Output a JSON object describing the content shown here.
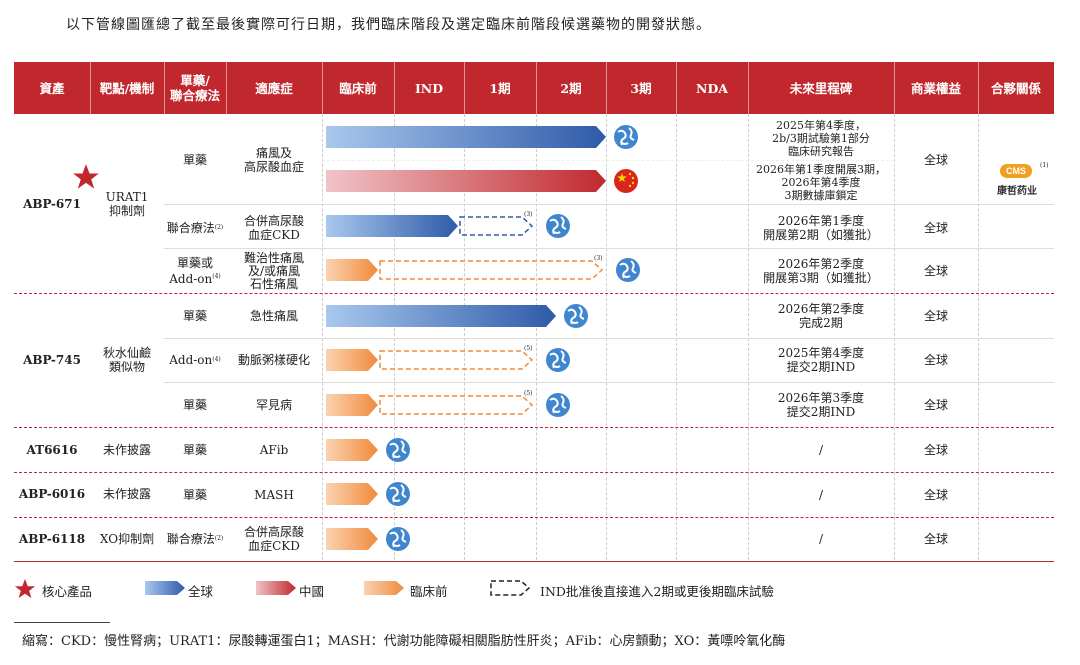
{
  "intro": "以下管線圖匯總了截至最後實際可行日期，我們臨床階段及選定臨床前階段候選藥物的開發狀態。",
  "headers": {
    "asset": "資產",
    "target": "靶點/機制",
    "mode": "單藥/\n聯合療法",
    "indication": "適應症",
    "preclinical": "臨床前",
    "ind": "IND",
    "p1": "1期",
    "p2": "2期",
    "p3": "3期",
    "nda": "NDA",
    "milestone": "未來里程碑",
    "rights": "商業權益",
    "partner": "合夥關係"
  },
  "groups": [
    {
      "asset": "ABP-671",
      "target": "URAT1\n抑制劑",
      "core": true
    },
    {
      "asset": "ABP-745",
      "target": "秋水仙鹼\n類似物"
    },
    {
      "asset": "AT6616",
      "target": "未作披露"
    },
    {
      "asset": "ABP-6016",
      "target": "未作披露"
    },
    {
      "asset": "ABP-6118",
      "target": "XO抑制劑"
    }
  ],
  "rows": [
    {
      "mode": "單藥",
      "indication": "痛風及\n高尿酸血症",
      "milestone": "2025年第4季度，\n2b/3期試驗第1部分\n臨床研究報告",
      "rights": "全球",
      "bar": {
        "stage_end": "3期",
        "region": "全球",
        "type": "solid"
      }
    },
    {
      "mode": "",
      "indication": "",
      "milestone": "2026年第1季度開展3期，\n2026年第4季度\n3期數據庫鎖定",
      "rights": "",
      "bar": {
        "stage_end": "3期",
        "region": "中國",
        "type": "solid"
      }
    },
    {
      "mode": "聯合療法",
      "mode_sup": "(2)",
      "indication": "合併高尿酸\n血症CKD",
      "milestone": "2026年第1季度\n開展第2期（如獲批）",
      "rights": "全球",
      "bar": {
        "stage_end": "IND",
        "region": "全球",
        "type": "solid",
        "dashed_to": "2期",
        "sup": "(3)"
      }
    },
    {
      "mode": "單藥或\nAdd-on",
      "mode_sup": "(4)",
      "indication": "難治性痛風\n及/或痛風\n石性痛風",
      "milestone": "2026年第2季度\n開展第3期（如獲批）",
      "rights": "全球",
      "bar": {
        "stage_end": "臨床前",
        "region": "臨床前",
        "type": "solid",
        "dashed_to": "3期",
        "sup": "(3)"
      }
    },
    {
      "mode": "單藥",
      "indication": "急性痛風",
      "milestone": "2026年第2季度\n完成2期",
      "rights": "全球",
      "bar": {
        "stage_end": "2期",
        "region": "全球",
        "type": "solid"
      }
    },
    {
      "mode": "Add-on",
      "mode_sup": "(4)",
      "indication": "動脈粥樣硬化",
      "milestone": "2025年第4季度\n提交2期IND",
      "rights": "全球",
      "bar": {
        "stage_end": "臨床前",
        "region": "臨床前",
        "type": "solid",
        "dashed_to": "2期",
        "sup": "(5)"
      }
    },
    {
      "mode": "單藥",
      "indication": "罕見病",
      "milestone": "2026年第3季度\n提交2期IND",
      "rights": "全球",
      "bar": {
        "stage_end": "臨床前",
        "region": "臨床前",
        "type": "solid",
        "dashed_to": "2期",
        "sup": "(5)"
      }
    },
    {
      "mode": "單藥",
      "indication": "AFib",
      "milestone": "/",
      "rights": "全球",
      "bar": {
        "stage_end": "臨床前",
        "region": "臨床前",
        "type": "solid"
      }
    },
    {
      "mode": "單藥",
      "indication": "MASH",
      "milestone": "/",
      "rights": "全球",
      "bar": {
        "stage_end": "臨床前",
        "region": "臨床前",
        "type": "solid"
      }
    },
    {
      "mode": "聯合療法",
      "mode_sup": "(2)",
      "indication": "合併高尿酸\n血症CKD",
      "milestone": "/",
      "rights": "全球",
      "bar": {
        "stage_end": "臨床前",
        "region": "臨床前",
        "type": "solid"
      }
    }
  ],
  "partner": {
    "logo_text": "CMS",
    "name": "康哲药业",
    "sup": "(1)"
  },
  "legend": {
    "core": "核心產品",
    "global": "全球",
    "china": "中國",
    "preclinical": "臨床前",
    "dashed": "IND批准後直接進入2期或更後期臨床試驗"
  },
  "footnote": "縮寫：CKD：慢性腎病；URAT1：尿酸轉運蛋白1；MASH：代謝功能障礙相關脂肪性肝炎；AFib：心房顫動；XO：黃嘌呤氧化酶",
  "colors": {
    "red": "#c0282e",
    "blue": "#2e5aa8",
    "light_blue": "#a9c8ee",
    "orange": "#f08a3c",
    "light_orange": "#fbd3b0"
  },
  "chart_data": {
    "type": "table",
    "stages": [
      "臨床前",
      "IND",
      "1期",
      "2期",
      "3期",
      "NDA"
    ]
  }
}
